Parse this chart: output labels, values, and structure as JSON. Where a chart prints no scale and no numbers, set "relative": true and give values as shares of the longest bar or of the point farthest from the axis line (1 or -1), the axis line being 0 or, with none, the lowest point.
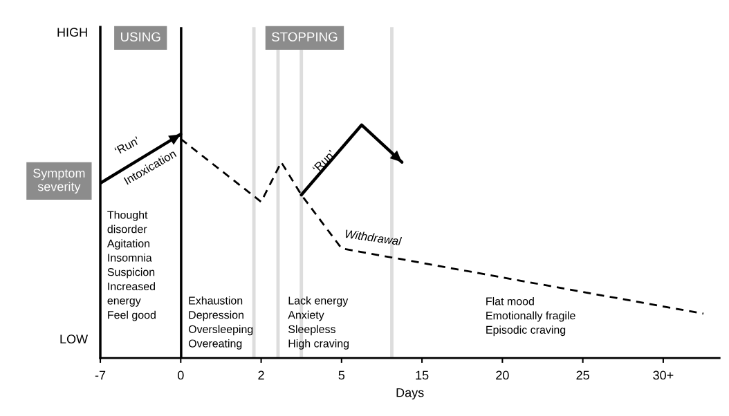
{
  "chart_data": {
    "type": "line",
    "xlabel": "Days",
    "ylabel": "Symptom severity",
    "relative": true,
    "categories": [
      "-7",
      null,
      null,
      null,
      "0",
      null,
      null,
      null,
      "2",
      null,
      null,
      null,
      "5",
      null,
      null,
      null,
      "15",
      null,
      null,
      null,
      "20",
      null,
      null,
      null,
      "25",
      null,
      null,
      null,
      "30+",
      null,
      null
    ],
    "series": [
      {
        "color": "#000000",
        "line_style": "solid",
        "values": [
          0.75,
          null,
          null,
          null,
          0.96,
          null,
          null,
          null,
          null,
          null,
          null,
          null,
          null,
          null,
          null,
          null,
          null,
          null,
          null,
          null,
          null,
          null,
          null,
          null,
          null,
          null,
          null,
          null,
          null,
          null,
          null
        ]
      },
      {
        "color": "#000000",
        "line_style": "dashed",
        "values": [
          null,
          null,
          null,
          null,
          0.94,
          null,
          null,
          null,
          0.67,
          0.84,
          0.7,
          null,
          0.47,
          null,
          null,
          null,
          null,
          null,
          null,
          null,
          null,
          null,
          null,
          null,
          null,
          null,
          null,
          null,
          null,
          null,
          0.19
        ]
      },
      {
        "color": "#000000",
        "line_style": "solid",
        "values": [
          null,
          null,
          null,
          null,
          null,
          null,
          null,
          null,
          null,
          null,
          0.7,
          null,
          null,
          1.0,
          null,
          0.84,
          null,
          null,
          null,
          null,
          null,
          null,
          null,
          null,
          null,
          null,
          null,
          null,
          null,
          null,
          null
        ]
      }
    ],
    "annotations": [
      "HIGH",
      "LOW",
      "USING",
      "STOPPING",
      "‘Run’",
      "Intoxication",
      "‘Run’",
      "Withdrawal",
      "Thought\ndisorder\nAgitation\nInsomnia\nSuspicion\nIncreased\nenergy\nFeel good",
      "Exhaustion\nDepression\nOversleeping\nOvereating",
      "Lack energy\nAnxiety\nSleepless\nHigh craving",
      "Flat mood\nEmotionally fragile\nEpisodic craving"
    ]
  }
}
